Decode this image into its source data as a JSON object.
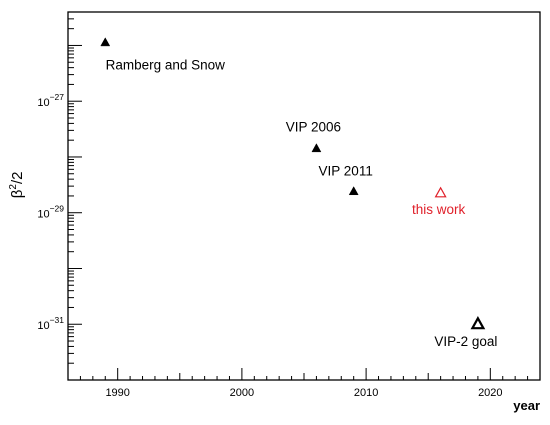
{
  "chart_data": {
    "type": "scatter",
    "xlabel": "year",
    "ylabel_base": "β",
    "ylabel_sup": "2",
    "ylabel_tail": "/2",
    "xlim": [
      1986,
      2024
    ],
    "xscale": "linear",
    "yscale": "log",
    "ylim_log10": [
      -32,
      -25.4
    ],
    "xticks": [
      1990,
      2000,
      2010,
      2020
    ],
    "yticks_labeled_exp": [
      -31,
      -29,
      -27
    ],
    "ytick_base": "10",
    "grid": false,
    "points": [
      {
        "x": 1989,
        "log10_y": -25.95,
        "label": "Ramberg and Snow",
        "marker": "filled-triangle",
        "color": "#000000"
      },
      {
        "x": 2006,
        "log10_y": -27.85,
        "label": "VIP 2006",
        "marker": "filled-triangle",
        "color": "#000000"
      },
      {
        "x": 2009,
        "log10_y": -28.62,
        "label": "VIP 2011",
        "marker": "filled-triangle",
        "color": "#000000"
      },
      {
        "x": 2016,
        "log10_y": -28.65,
        "label": "this work",
        "marker": "open-triangle",
        "color": "#e0202a"
      },
      {
        "x": 2019,
        "log10_y": -31.0,
        "label": "VIP-2 goal",
        "marker": "open-triangle-bold",
        "color": "#000000"
      }
    ]
  }
}
